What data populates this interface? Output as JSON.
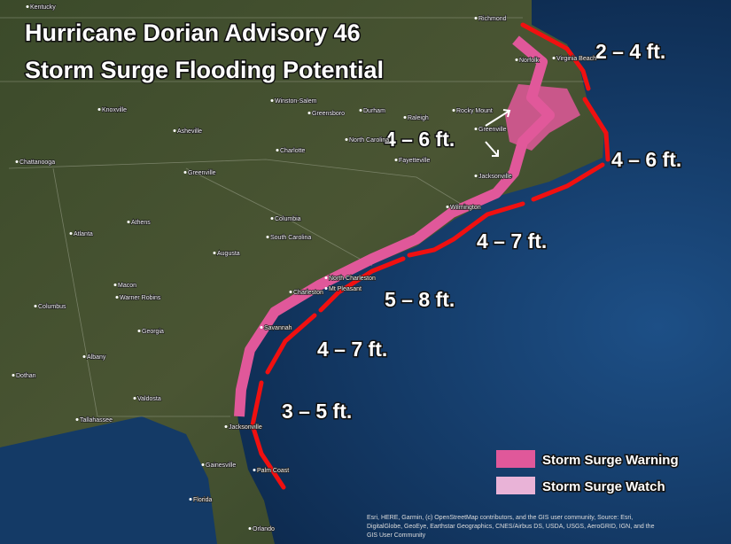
{
  "title": [
    "Hurricane Dorian Advisory 46",
    "Storm Surge Flooding Potential"
  ],
  "surge_labels": [
    "2 – 4 ft.",
    "4 – 6 ft.",
    "4 – 6 ft.",
    "4 – 7 ft.",
    "5 – 8 ft.",
    "4 – 7 ft.",
    "3 – 5 ft."
  ],
  "legend": [
    "Storm Surge Warning",
    "Storm Surge Watch"
  ],
  "places": [
    "Kentucky",
    "Richmond",
    "Norfolk",
    "Virginia Beach",
    "Winston-Salem",
    "Knoxville",
    "Greensboro",
    "Durham",
    "Raleigh",
    "Rocky Mount",
    "Asheville",
    "North Carolina",
    "Greenville",
    "Charlotte",
    "Fayetteville",
    "Chattanooga",
    "Greenville",
    "Jacksonville",
    "Wilmington",
    "Columbia",
    "Athens",
    "Atlanta",
    "South Carolina",
    "Augusta",
    "North Charleston",
    "Charleston",
    "Mt Pleasant",
    "Macon",
    "Warner Robins",
    "Columbus",
    "Georgia",
    "Savannah",
    "Albany",
    "Dothan",
    "Valdosta",
    "Tallahassee",
    "Jacksonville",
    "Gainesville",
    "Palm Coast",
    "Florida",
    "Orlando"
  ],
  "attribution": [
    "Esri, HERE, Garmin, (c) OpenStreetMap contributors, and the GIS user community, Source: Esri,",
    "DigitalGlobe, GeoEye, Earthstar Geographics, CNES/Airbus DS, USDA, USGS, AeroGRID, IGN, and the",
    "GIS User Community"
  ]
}
